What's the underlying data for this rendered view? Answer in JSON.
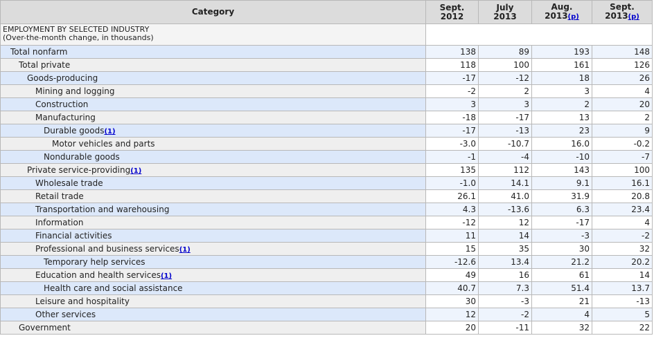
{
  "headers": [
    "Category",
    "Sept.\n2012",
    "July\n2013",
    "Aug.\n2013",
    "Sept.\n2013"
  ],
  "header_footnotes": [
    "",
    "",
    "",
    "(p)",
    "(p)"
  ],
  "section": {
    "title": "EMPLOYMENT BY SELECTED INDUSTRY",
    "subtitle": "(Over-the-month change, in thousands)"
  },
  "rows": [
    {
      "label": "Total nonfarm",
      "level": 0,
      "fn": "",
      "values": [
        "138",
        "89",
        "193",
        "148"
      ]
    },
    {
      "label": "Total private",
      "level": 1,
      "fn": "",
      "values": [
        "118",
        "100",
        "161",
        "126"
      ]
    },
    {
      "label": "Goods-producing",
      "level": 2,
      "fn": "",
      "values": [
        "-17",
        "-12",
        "18",
        "26"
      ]
    },
    {
      "label": "Mining and logging",
      "level": 3,
      "fn": "",
      "values": [
        "-2",
        "2",
        "3",
        "4"
      ]
    },
    {
      "label": "Construction",
      "level": 3,
      "fn": "",
      "values": [
        "3",
        "3",
        "2",
        "20"
      ]
    },
    {
      "label": "Manufacturing",
      "level": 3,
      "fn": "",
      "values": [
        "-18",
        "-17",
        "13",
        "2"
      ]
    },
    {
      "label": "Durable goods",
      "level": 4,
      "fn": "(1)",
      "values": [
        "-17",
        "-13",
        "23",
        "9"
      ]
    },
    {
      "label": "Motor vehicles and parts",
      "level": 5,
      "fn": "",
      "values": [
        "-3.0",
        "-10.7",
        "16.0",
        "-0.2"
      ]
    },
    {
      "label": "Nondurable goods",
      "level": 4,
      "fn": "",
      "values": [
        "-1",
        "-4",
        "-10",
        "-7"
      ]
    },
    {
      "label": "Private service-providing",
      "level": 2,
      "fn": "(1)",
      "values": [
        "135",
        "112",
        "143",
        "100"
      ]
    },
    {
      "label": "Wholesale trade",
      "level": 3,
      "fn": "",
      "values": [
        "-1.0",
        "14.1",
        "9.1",
        "16.1"
      ]
    },
    {
      "label": "Retail trade",
      "level": 3,
      "fn": "",
      "values": [
        "26.1",
        "41.0",
        "31.9",
        "20.8"
      ]
    },
    {
      "label": "Transportation and warehousing",
      "level": 3,
      "fn": "",
      "values": [
        "4.3",
        "-13.6",
        "6.3",
        "23.4"
      ]
    },
    {
      "label": "Information",
      "level": 3,
      "fn": "",
      "values": [
        "-12",
        "12",
        "-17",
        "4"
      ]
    },
    {
      "label": "Financial activities",
      "level": 3,
      "fn": "",
      "values": [
        "11",
        "14",
        "-3",
        "-2"
      ]
    },
    {
      "label": "Professional and business services",
      "level": 3,
      "fn": "(1)",
      "values": [
        "15",
        "35",
        "30",
        "32"
      ]
    },
    {
      "label": "Temporary help services",
      "level": 4,
      "fn": "",
      "values": [
        "-12.6",
        "13.4",
        "21.2",
        "20.2"
      ]
    },
    {
      "label": "Education and health services",
      "level": 3,
      "fn": "(1)",
      "values": [
        "49",
        "16",
        "61",
        "14"
      ]
    },
    {
      "label": "Health care and social assistance",
      "level": 4,
      "fn": "",
      "values": [
        "40.7",
        "7.3",
        "51.4",
        "13.7"
      ]
    },
    {
      "label": "Leisure and hospitality",
      "level": 3,
      "fn": "",
      "values": [
        "30",
        "-3",
        "21",
        "-13"
      ]
    },
    {
      "label": "Other services",
      "level": 3,
      "fn": "",
      "values": [
        "12",
        "-2",
        "4",
        "5"
      ]
    },
    {
      "label": "Government",
      "level": 1,
      "fn": "",
      "values": [
        "20",
        "-11",
        "32",
        "22"
      ]
    }
  ]
}
